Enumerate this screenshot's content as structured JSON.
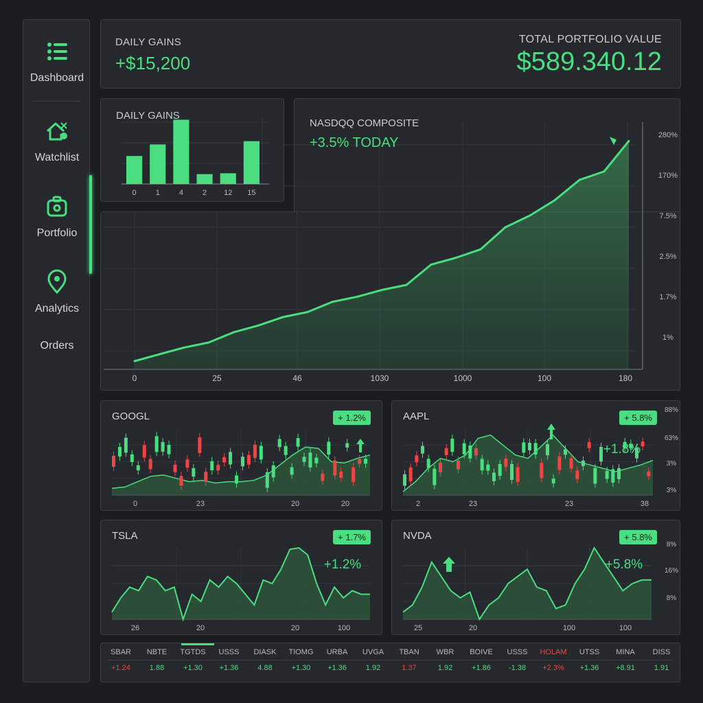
{
  "sidebar": {
    "items": [
      {
        "label": "Dashboard",
        "icon": "list-icon"
      },
      {
        "label": "Watchlist",
        "icon": "house-icon"
      },
      {
        "label": "Portfolio",
        "icon": "camera-icon"
      },
      {
        "label": "Analytics",
        "icon": "location-pin-icon"
      },
      {
        "label": "Orders",
        "icon": ""
      }
    ],
    "accent": "#4ade80"
  },
  "header": {
    "daily_gains_label": "DAILY GAINS",
    "daily_gains_value": "+$15,200",
    "total_label": "TOTAL PORTFOLIO VALUE",
    "total_value": "$589.340.12"
  },
  "mini_chart": {
    "title": "DAILY GAINS",
    "chart_data": {
      "type": "bar",
      "categories": [
        "0",
        "1",
        "4",
        "2",
        "12",
        "15"
      ],
      "values": [
        34,
        48,
        78,
        12,
        13,
        52
      ],
      "ylim": [
        0,
        80
      ]
    }
  },
  "main_chart": {
    "title": "NASDQQ COMPOSITE",
    "change": "+3.5% TODAY",
    "chart_data": {
      "type": "area",
      "x_tick_labels": [
        "0",
        "25",
        "46",
        "1030",
        "1000",
        "100",
        "180"
      ],
      "y_tick_labels": [
        "1%",
        "1.7%",
        "2.5%",
        "7.5%",
        "170%",
        "280%"
      ],
      "values": [
        0,
        4,
        8,
        11,
        17,
        21,
        26,
        29,
        35,
        38,
        42,
        45,
        57,
        61,
        66,
        79,
        86,
        95,
        107,
        112,
        130
      ],
      "ylim": [
        0,
        135
      ]
    }
  },
  "stocks": [
    {
      "symbol": "GOOGL",
      "badge": "+ 1.2%",
      "x_labels": [
        "0",
        "23",
        "20",
        "20"
      ],
      "y_labels": [],
      "inline": ""
    },
    {
      "symbol": "AAPL",
      "badge": "+ 5.8%",
      "x_labels": [
        "2",
        "23",
        "23",
        "38"
      ],
      "y_labels": [
        "88%",
        "63%",
        "3%",
        "3%"
      ],
      "inline": "+1.8%"
    },
    {
      "symbol": "TSLA",
      "badge": "+ 1.7%",
      "x_labels": [
        "26",
        "20",
        "20",
        "100"
      ],
      "y_labels": [],
      "inline": "+1.2%"
    },
    {
      "symbol": "NVDA",
      "badge": "+ 5.8%",
      "x_labels": [
        "25",
        "20",
        "100",
        "100"
      ],
      "y_labels": [
        "8%",
        "16%",
        "8%"
      ],
      "inline": "+5.8%"
    }
  ],
  "ticker": [
    {
      "sym": "SBAR",
      "chg": "+1.24",
      "color": "#ef4444"
    },
    {
      "sym": "NBTE",
      "chg": "1.88",
      "color": "#4ade80"
    },
    {
      "sym": "TGTDS",
      "chg": "+1.30",
      "color": "#4ade80"
    },
    {
      "sym": "USSS",
      "chg": "+1.36",
      "color": "#4ade80"
    },
    {
      "sym": "DIASK",
      "chg": "4.88",
      "color": "#4ade80"
    },
    {
      "sym": "TIOMG",
      "chg": "+1.30",
      "color": "#4ade80"
    },
    {
      "sym": "URBA",
      "chg": "+1.36",
      "color": "#4ade80"
    },
    {
      "sym": "UVGA",
      "chg": "1.92",
      "color": "#4ade80"
    },
    {
      "sym": "TBAN",
      "chg": "1.37",
      "color": "#ef4444"
    },
    {
      "sym": "WBR",
      "chg": "1.92",
      "color": "#4ade80"
    },
    {
      "sym": "BOIVE",
      "chg": "+1.86",
      "color": "#4ade80"
    },
    {
      "sym": "USSS",
      "chg": "-1.38",
      "color": "#4ade80"
    },
    {
      "sym": "HOLAM",
      "chg": "+2.3%",
      "color": "#ef4444"
    },
    {
      "sym": "UTSS",
      "chg": "+1.36",
      "color": "#4ade80"
    },
    {
      "sym": "MINA",
      "chg": "+8.91",
      "color": "#4ade80"
    },
    {
      "sym": "DISS",
      "chg": "1.91",
      "color": "#4ade80"
    }
  ],
  "colors": {
    "up": "#4ade80",
    "down": "#ef4444",
    "panel": "#25282d",
    "bg": "#1b1d21"
  }
}
